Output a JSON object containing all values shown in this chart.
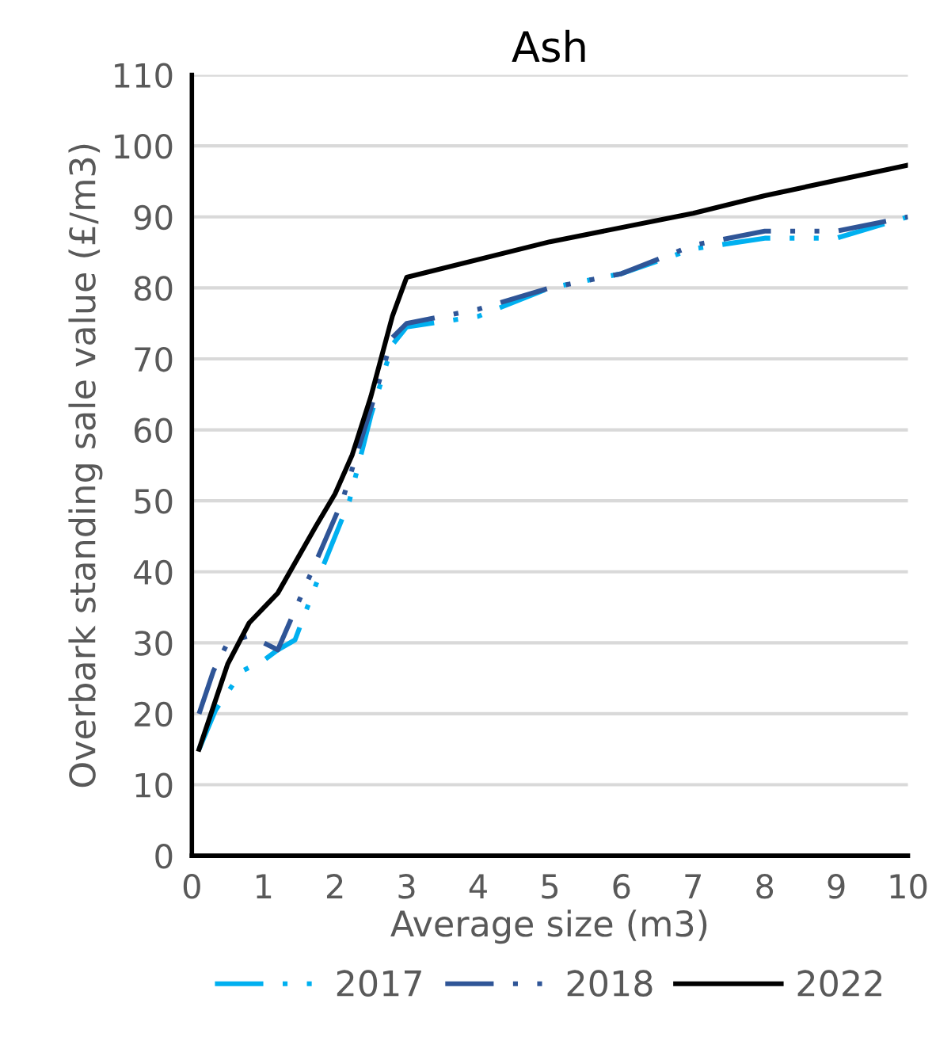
{
  "chart_data": {
    "type": "line",
    "title": "Ash",
    "xlabel": "Average size (m3)",
    "ylabel": "Overbark standing sale value (£/m3)",
    "xlim": [
      0,
      10
    ],
    "xticks": [
      0,
      1,
      2,
      3,
      4,
      5,
      6,
      7,
      8,
      9,
      10
    ],
    "ylim": [
      0,
      110
    ],
    "yticks": [
      0,
      10,
      20,
      30,
      40,
      50,
      60,
      70,
      80,
      90,
      100,
      110
    ],
    "grid": "y",
    "legend": "bottom",
    "marker": "none",
    "series": [
      {
        "name": "2017",
        "color": "#00b0f0",
        "line_style": "dashdot",
        "x": [
          0.1,
          0.33,
          0.7,
          1.0,
          1.2,
          1.44,
          1.8,
          2.2,
          2.5,
          2.8,
          3.0,
          4,
          5,
          6,
          7,
          8,
          9,
          10
        ],
        "values": [
          15,
          20.5,
          26,
          27.5,
          29,
          30.4,
          40,
          50,
          62,
          72,
          74.5,
          76,
          80,
          82,
          85.5,
          87,
          87,
          90
        ]
      },
      {
        "name": "2018",
        "color": "#2f5597",
        "line_style": "dashdot",
        "x": [
          0.1,
          0.3,
          0.5,
          0.8,
          1.0,
          1.2,
          1.5,
          1.8,
          2.1,
          2.5,
          2.8,
          3.0,
          4,
          5,
          6,
          7,
          8,
          9,
          10
        ],
        "values": [
          20,
          26,
          30,
          31,
          30,
          29,
          36,
          43,
          50,
          63,
          73,
          75,
          77,
          80,
          82,
          86,
          88,
          88,
          90
        ]
      },
      {
        "name": "2022",
        "color": "#000000",
        "line_style": "solid",
        "x": [
          0.1,
          0.3,
          0.5,
          0.8,
          1.2,
          1.73,
          2.0,
          2.24,
          2.5,
          2.8,
          3.0,
          5,
          7,
          8,
          10
        ],
        "values": [
          15,
          21,
          27,
          32.8,
          37,
          46.4,
          51,
          56.5,
          64.7,
          76,
          81.5,
          86.5,
          90.5,
          93,
          97.3
        ]
      }
    ]
  }
}
